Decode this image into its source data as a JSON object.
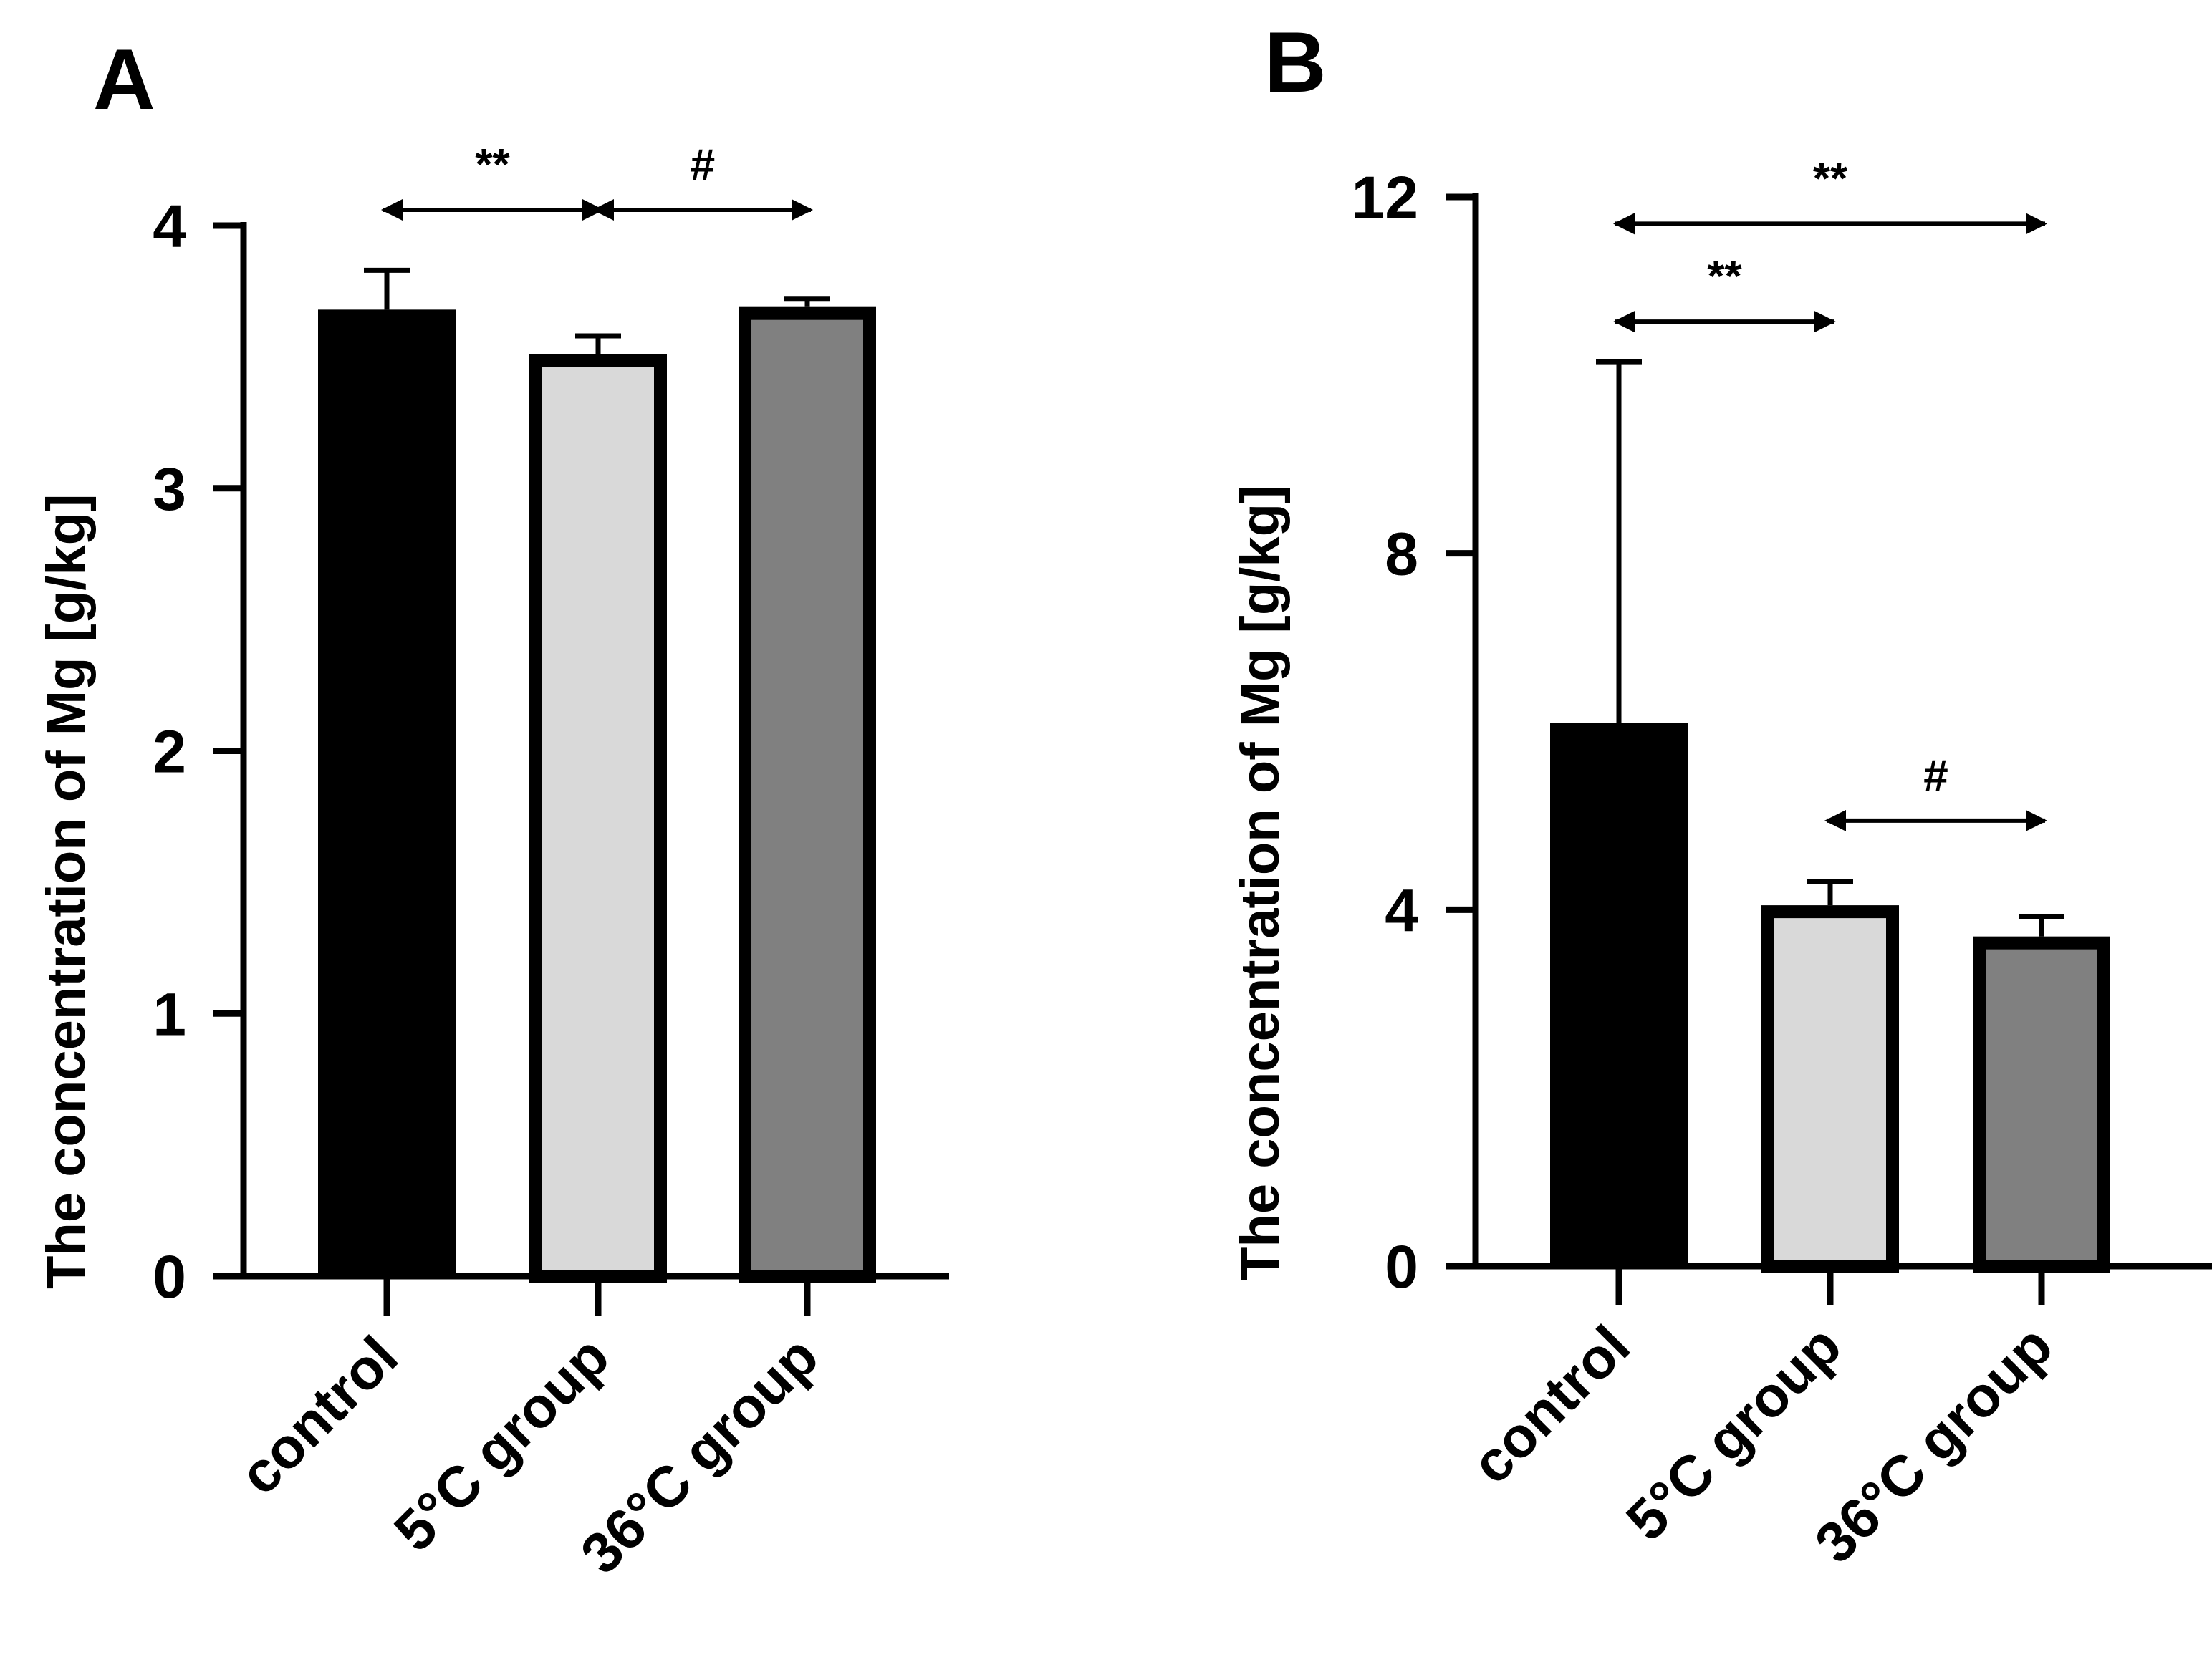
{
  "figure": {
    "description_free": true
  },
  "chart_data": [
    {
      "panel": "A",
      "type": "bar",
      "categories": [
        "control",
        "5°C group",
        "36°C group"
      ],
      "values": [
        3.68,
        3.51,
        3.69
      ],
      "errors": [
        0.15,
        0.07,
        0.03
      ],
      "bar_colors": [
        "#000000",
        "#d9d9d9",
        "#808080"
      ],
      "ylabel": "The concentration of Mg [g/kg]",
      "xlabel": "",
      "ylim": [
        0,
        4
      ],
      "yticks": [
        0,
        1,
        2,
        3,
        4
      ],
      "ytick_labels": [
        "0",
        "1",
        "2",
        "3",
        "4"
      ],
      "annotations": [
        {
          "text": "**",
          "from": 0,
          "to": 1,
          "y": 4.06
        },
        {
          "text": "#",
          "from": 1,
          "to": 2,
          "y": 4.06
        }
      ]
    },
    {
      "panel": "B",
      "type": "bar",
      "categories": [
        "control",
        "5°C group",
        "36°C group"
      ],
      "values": [
        6.1,
        4.05,
        3.7
      ],
      "errors": [
        4.05,
        0.27,
        0.22
      ],
      "bar_colors": [
        "#000000",
        "#d9d9d9",
        "#808080"
      ],
      "ylabel": "The concentration of Mg [g/kg]",
      "xlabel": "",
      "ylim": [
        0,
        12
      ],
      "yticks": [
        0,
        4,
        8,
        12
      ],
      "ytick_labels": [
        "0",
        "4",
        "8",
        "12"
      ],
      "annotations": [
        {
          "text": "**",
          "from": 0,
          "to": 2,
          "y": 11.7
        },
        {
          "text": "**",
          "from": 0,
          "to": 1,
          "y": 10.6
        },
        {
          "text": "#",
          "from": 1,
          "to": 2,
          "y": 5.0
        }
      ]
    }
  ]
}
